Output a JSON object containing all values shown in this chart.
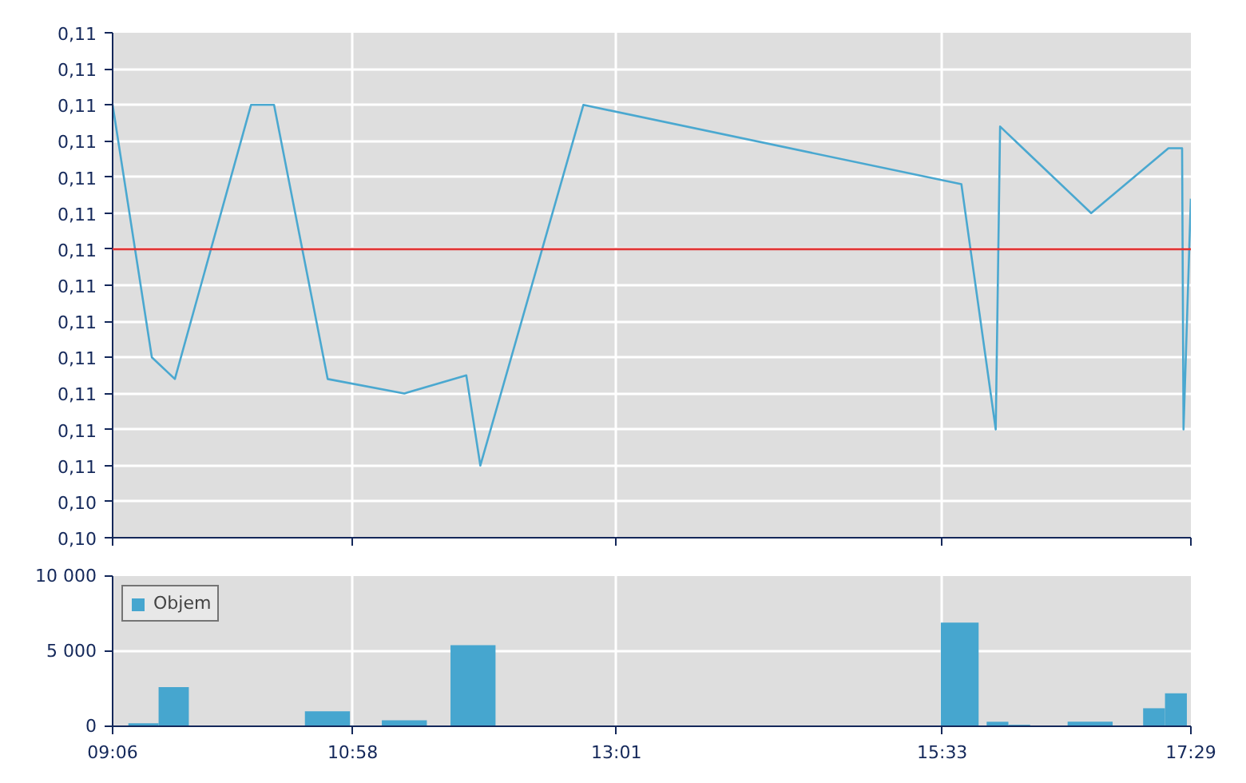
{
  "chart_data": [
    {
      "type": "line",
      "series": [
        {
          "color": "#4aa8d0",
          "x": [
            9.1,
            9.405,
            9.584,
            10.176,
            10.355,
            10.772,
            11.368,
            11.85,
            11.959,
            12.76,
            15.699,
            15.966,
            16.0,
            16.708,
            17.309,
            17.415,
            17.426,
            17.483
          ],
          "values": [
            0.11,
            0.1065,
            0.1062,
            0.11,
            0.11,
            0.1062,
            0.106,
            0.10625,
            0.105,
            0.11,
            0.1089,
            0.1055,
            0.1097,
            0.1085,
            0.1094,
            0.1094,
            0.1055,
            0.1087
          ]
        }
      ],
      "xlim": [
        9.1,
        17.4833
      ],
      "xticks": [
        {
          "value": 9.1,
          "label": null
        },
        {
          "value": 10.9667,
          "label": null
        },
        {
          "value": 13.0167,
          "label": null
        },
        {
          "value": 15.55,
          "label": null
        },
        {
          "value": 17.4833,
          "label": null
        }
      ],
      "ylim": [
        0.104,
        0.111
      ],
      "yticks": [
        {
          "value": 0.104,
          "label": "0,10"
        },
        {
          "value": 0.1045,
          "label": "0,10"
        },
        {
          "value": 0.105,
          "label": "0,11"
        },
        {
          "value": 0.1055,
          "label": "0,11"
        },
        {
          "value": 0.106,
          "label": "0,11"
        },
        {
          "value": 0.1065,
          "label": "0,11"
        },
        {
          "value": 0.107,
          "label": "0,11"
        },
        {
          "value": 0.1075,
          "label": "0,11"
        },
        {
          "value": 0.108,
          "label": "0,11"
        },
        {
          "value": 0.1085,
          "label": "0,11"
        },
        {
          "value": 0.109,
          "label": "0,11"
        },
        {
          "value": 0.1095,
          "label": "0,11"
        },
        {
          "value": 0.11,
          "label": "0,11"
        },
        {
          "value": 0.1105,
          "label": "0,11"
        },
        {
          "value": 0.111,
          "label": "0,11"
        }
      ],
      "ref_lines": [
        {
          "axis": "y",
          "value": 0.108,
          "color": "#e03535"
        }
      ],
      "grid": true,
      "tick_labels": "y",
      "marker": "none",
      "line_style": "solid"
    },
    {
      "type": "bar",
      "series": [
        {
          "name": "Objem",
          "color": "#46a6cf",
          "x": [
            9.34,
            9.575,
            10.77,
            11.368,
            11.902,
            15.686,
            15.98,
            16.149,
            16.7,
            17.197,
            17.367
          ],
          "values": [
            200,
            2600,
            1000,
            400,
            5400,
            6900,
            300,
            100,
            300,
            1200,
            2200
          ]
        }
      ],
      "xlim": [
        9.1,
        17.4833
      ],
      "xticks": [
        {
          "value": 9.1,
          "label": "09:06"
        },
        {
          "value": 10.9667,
          "label": "10:58"
        },
        {
          "value": 13.0167,
          "label": "13:01"
        },
        {
          "value": 15.55,
          "label": "15:33"
        },
        {
          "value": 17.4833,
          "label": "17:29"
        }
      ],
      "ylim": [
        0,
        10000
      ],
      "yticks": [
        {
          "value": 0,
          "label": "0"
        },
        {
          "value": 5000,
          "label": "5 000"
        },
        {
          "value": 10000,
          "label": "10 000"
        }
      ],
      "grid": true,
      "legend": "top left"
    }
  ]
}
